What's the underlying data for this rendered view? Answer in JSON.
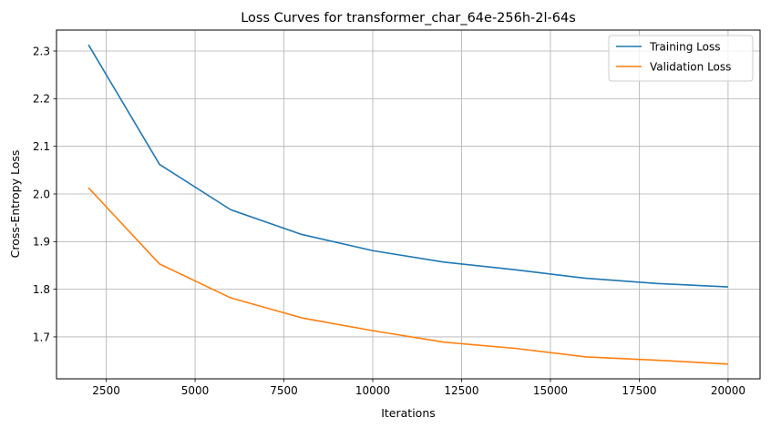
{
  "chart_data": {
    "type": "line",
    "title": "Loss Curves for transformer_char_64e-256h-2l-64s",
    "xlabel": "Iterations",
    "ylabel": "Cross-Entropy Loss",
    "x": [
      2000,
      4000,
      6000,
      8000,
      10000,
      12000,
      14000,
      16000,
      18000,
      20000
    ],
    "series": [
      {
        "name": "Training Loss",
        "color": "#1f77b4",
        "values": [
          2.313,
          2.062,
          1.967,
          1.915,
          1.881,
          1.857,
          1.841,
          1.823,
          1.812,
          1.805
        ]
      },
      {
        "name": "Validation Loss",
        "color": "#ff7f0e",
        "values": [
          2.013,
          1.853,
          1.782,
          1.74,
          1.713,
          1.689,
          1.676,
          1.658,
          1.651,
          1.643
        ]
      }
    ],
    "xlim": [
      1100,
      20900
    ],
    "ylim": [
      1.612,
      2.344
    ],
    "xticks": [
      2500,
      5000,
      7500,
      10000,
      12500,
      15000,
      17500,
      20000
    ],
    "yticks": [
      1.7,
      1.8,
      1.9,
      2.0,
      2.1,
      2.2,
      2.3
    ],
    "grid": true,
    "legend_position": "top-right"
  }
}
